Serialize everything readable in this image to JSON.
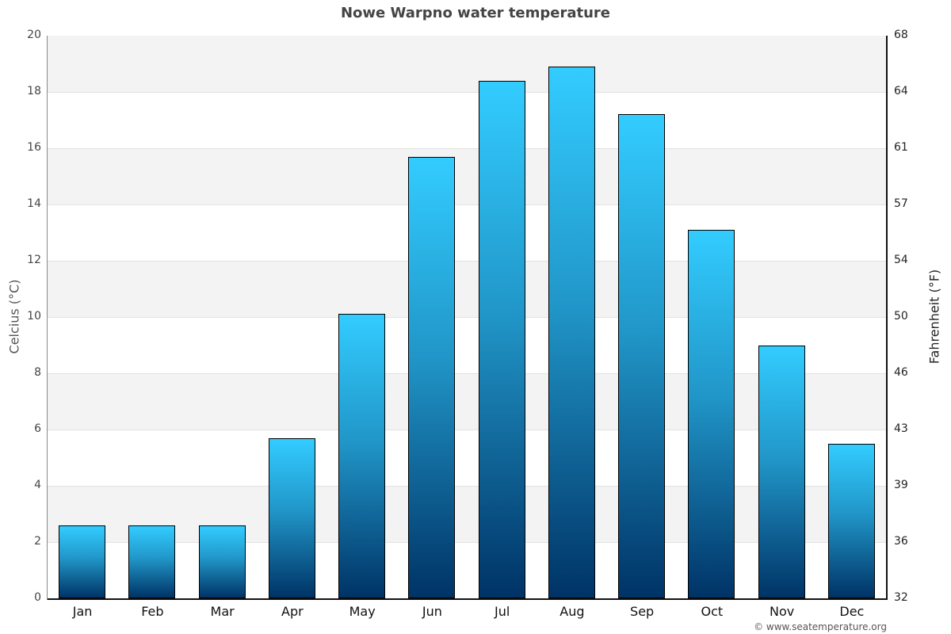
{
  "title": "Nowe Warpno water temperature",
  "credit": "© www.seatemperature.org",
  "axes": {
    "left_label": "Celcius (°C)",
    "right_label": "Fahrenheit (°F)",
    "left_ticks": [
      "20",
      "18",
      "16",
      "14",
      "12",
      "10",
      "8",
      "6",
      "4",
      "2",
      "0"
    ],
    "right_ticks": [
      "68",
      "64",
      "61",
      "57",
      "54",
      "50",
      "46",
      "43",
      "39",
      "36",
      "32"
    ]
  },
  "colors": {
    "bar_top": "#33ccff",
    "bar_bottom": "#003366",
    "band": "#f3f3f3",
    "title": "#444444"
  },
  "chart_data": {
    "type": "bar",
    "title": "Nowe Warpno water temperature",
    "xlabel": "",
    "ylabel": "Celcius (°C)",
    "y2label": "Fahrenheit (°F)",
    "ylim": [
      0,
      20
    ],
    "y2lim": [
      32,
      68
    ],
    "grid": true,
    "legend": "none",
    "categories": [
      "Jan",
      "Feb",
      "Mar",
      "Apr",
      "May",
      "Jun",
      "Jul",
      "Aug",
      "Sep",
      "Oct",
      "Nov",
      "Dec"
    ],
    "values": [
      2.6,
      2.6,
      2.6,
      5.7,
      10.1,
      15.7,
      18.4,
      18.9,
      17.2,
      13.1,
      9.0,
      5.5
    ]
  }
}
